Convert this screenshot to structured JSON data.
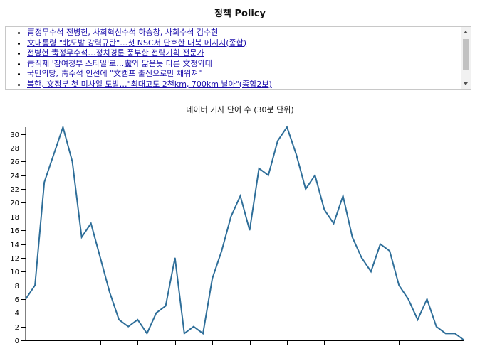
{
  "page": {
    "title": "정책 Policy"
  },
  "news": {
    "items": [
      "靑정무수석 전병헌, 사회혁신수석 하승창, 사회수석 김수현",
      "文대통령 \"北도발 강력규탄\"…첫 NSC서 단호한 대북 메시지(종합)",
      "전병헌 靑정무수석…정치경륜 풍부한 전략기획 전문가",
      "靑직제 '참여정부 스타일'로…盧와 닮은듯 다른 文청와대",
      "국민의당, 靑수석 인선에 \"文캠프 출신으로만 채워져\"",
      "북한, 文정부 첫 미사일 도발…\"최대고도 2천km, 700km 날아\"(종합2보)"
    ]
  },
  "chart_data": {
    "type": "line",
    "title": "네이버 기사 단어 수 (30분 단위)",
    "xlabel": "",
    "ylabel": "",
    "ylim": [
      0,
      31
    ],
    "y_ticks": [
      0,
      2,
      4,
      6,
      8,
      10,
      12,
      14,
      16,
      18,
      20,
      22,
      24,
      26,
      28,
      30
    ],
    "grid": false,
    "color": "#2e6e99",
    "series": [
      {
        "values": [
          6,
          8,
          23,
          27,
          31,
          26,
          15,
          17,
          12,
          7,
          3,
          2,
          3,
          1,
          4,
          5,
          12,
          1,
          2,
          1,
          9,
          13,
          18,
          21,
          16,
          25,
          24,
          29,
          31,
          27,
          22,
          24,
          19,
          17,
          21,
          15,
          12,
          10,
          14,
          13,
          8,
          6,
          3,
          6,
          2,
          1,
          1,
          0
        ]
      }
    ]
  }
}
